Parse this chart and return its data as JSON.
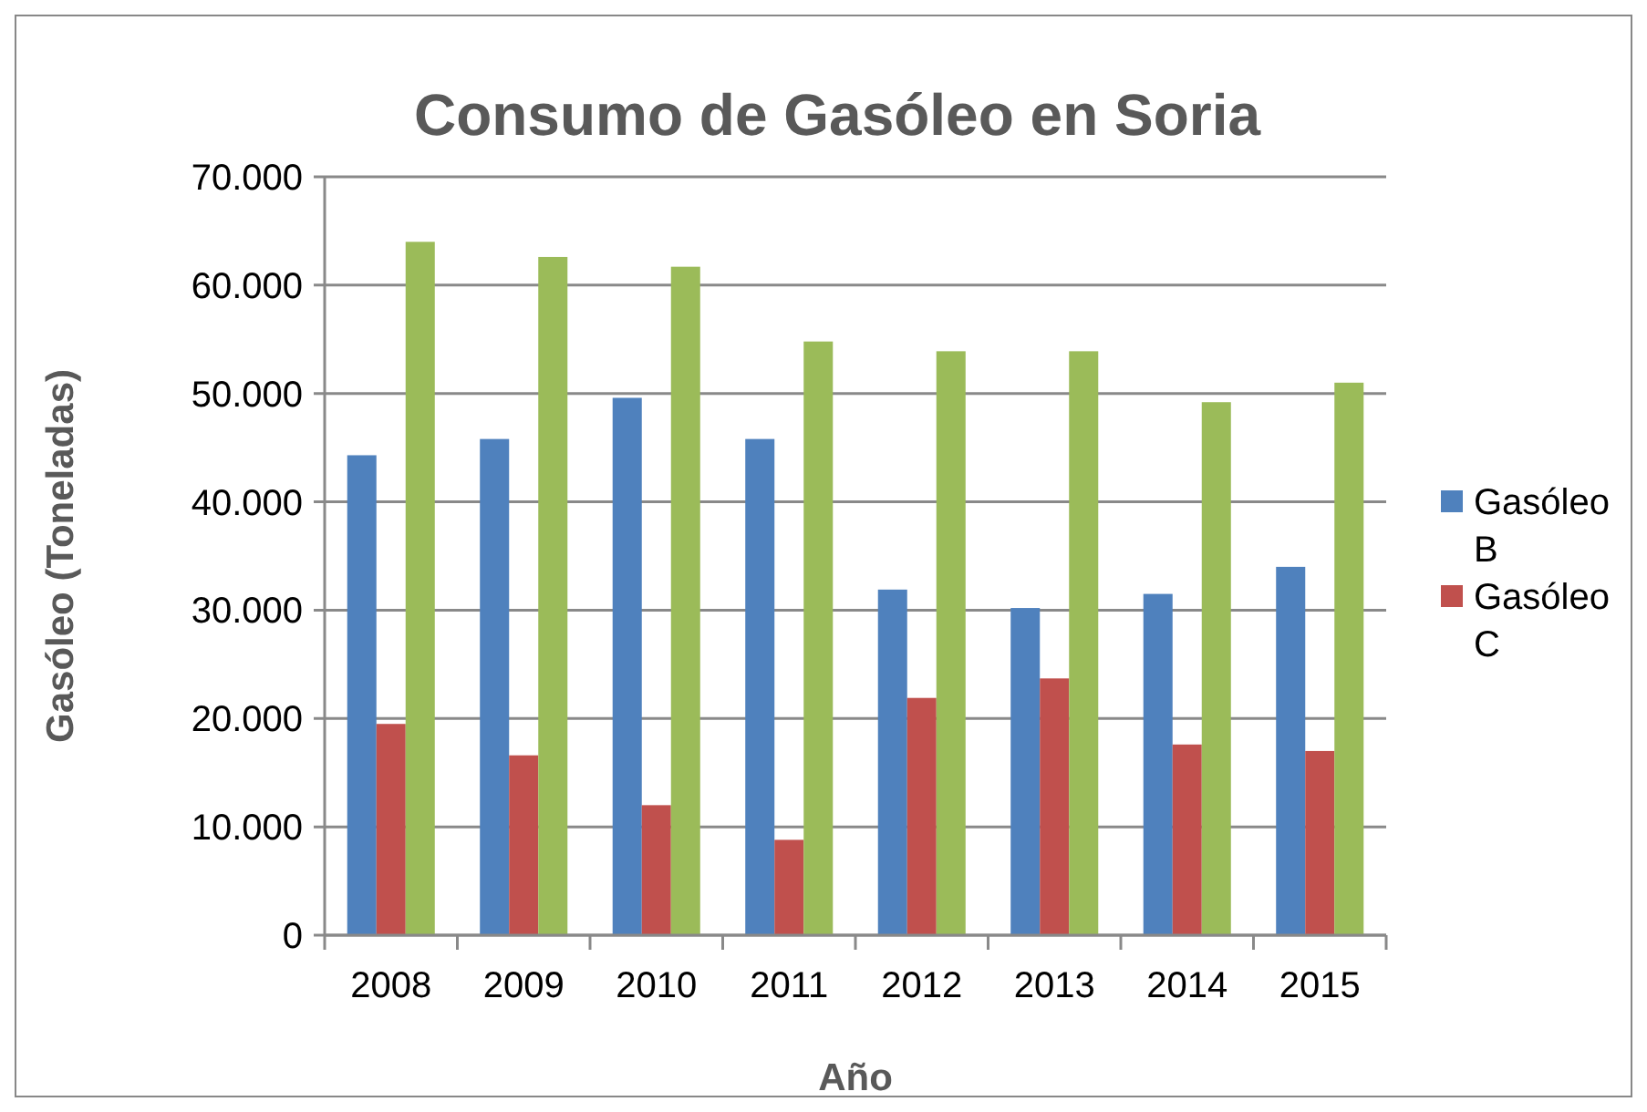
{
  "chart_data": {
    "type": "bar",
    "title": "Consumo de Gasóleo en Soria",
    "xlabel": "Año",
    "ylabel": "Gasóleo (Toneladas)",
    "categories": [
      "2008",
      "2009",
      "2010",
      "2011",
      "2012",
      "2013",
      "2014",
      "2015"
    ],
    "series": [
      {
        "name": "Gasóleo B",
        "color": "#4f81bd",
        "values": [
          44300,
          45800,
          49600,
          45800,
          31900,
          30200,
          31500,
          34000
        ]
      },
      {
        "name": "Gasóleo C",
        "color": "#c0504d",
        "values": [
          19500,
          16600,
          12000,
          8800,
          21900,
          23700,
          17600,
          17000
        ]
      },
      {
        "color": "#9bbb59",
        "values": [
          64000,
          62600,
          61700,
          54800,
          53900,
          53900,
          49200,
          51000
        ]
      }
    ],
    "ylim": [
      0,
      70000
    ],
    "yticks": [
      0,
      {
        "value": 10000,
        "label": "10.000"
      },
      {
        "value": 20000,
        "label": "20.000"
      },
      {
        "value": 30000,
        "label": "30.000"
      },
      {
        "value": 40000,
        "label": "40.000"
      },
      {
        "value": 50000,
        "label": "50.000"
      },
      {
        "value": 60000,
        "label": "60.000"
      },
      {
        "value": 70000,
        "label": "70.000"
      }
    ],
    "grid": "y",
    "legend": "right"
  }
}
